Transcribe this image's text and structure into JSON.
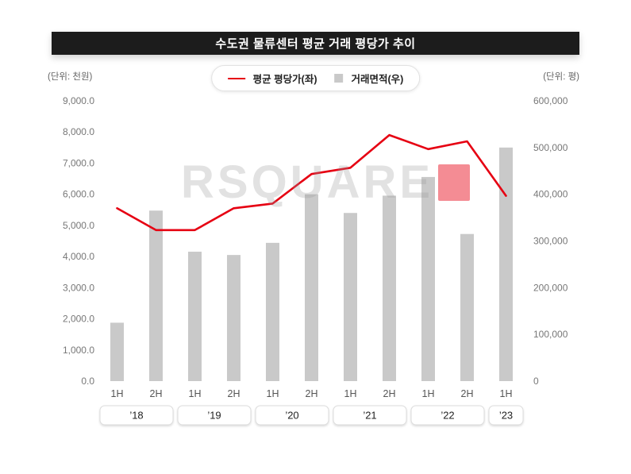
{
  "title": "수도권 물류센터 평균 거래 평당가 추이",
  "left_unit": "(단위: 천원)",
  "right_unit": "(단위: 평)",
  "watermark": {
    "text": "RSQUARE"
  },
  "legend": {
    "line_label": "평균 평당가(좌)",
    "bar_label": "거래면적(우)"
  },
  "colors": {
    "line": "#e60012",
    "bar": "#c9c9c9",
    "title_bg": "#1c1c1c",
    "axis_text": "#777777"
  },
  "chart_data": {
    "type": "bar+line",
    "title": "수도권 물류센터 평균 거래 평당가 추이",
    "categories": [
      "1H",
      "2H",
      "1H",
      "2H",
      "1H",
      "2H",
      "1H",
      "2H",
      "1H",
      "2H",
      "1H"
    ],
    "year_groups": [
      {
        "label": "’18",
        "start": 0,
        "count": 2
      },
      {
        "label": "’19",
        "start": 2,
        "count": 2
      },
      {
        "label": "’20",
        "start": 4,
        "count": 2
      },
      {
        "label": "’21",
        "start": 6,
        "count": 2
      },
      {
        "label": "’22",
        "start": 8,
        "count": 2
      },
      {
        "label": "’23",
        "start": 10,
        "count": 1
      }
    ],
    "series": [
      {
        "name": "평균 평당가(좌)",
        "type": "line",
        "axis": "left",
        "color": "#e60012",
        "values": [
          5550,
          4850,
          4850,
          5550,
          5700,
          6650,
          6850,
          7900,
          7450,
          7700,
          5950
        ]
      },
      {
        "name": "거래면적(우)",
        "type": "bar",
        "axis": "right",
        "color": "#c9c9c9",
        "values": [
          125000,
          365000,
          277000,
          270000,
          296000,
          400000,
          360000,
          397000,
          437000,
          315000,
          500000
        ]
      }
    ],
    "left_axis": {
      "min": 0,
      "max": 9000,
      "step": 1000,
      "tick_labels": [
        "0.0",
        "1,000.0",
        "2,000.0",
        "3,000.0",
        "4,000.0",
        "5,000.0",
        "6,000.0",
        "7,000.0",
        "8,000.0",
        "9,000.0"
      ]
    },
    "right_axis": {
      "min": 0,
      "max": 600000,
      "step": 100000,
      "tick_labels": [
        "0",
        "100,000",
        "200,000",
        "300,000",
        "400,000",
        "500,000",
        "600,000"
      ]
    },
    "grid": false,
    "legend_position": "top-center"
  }
}
